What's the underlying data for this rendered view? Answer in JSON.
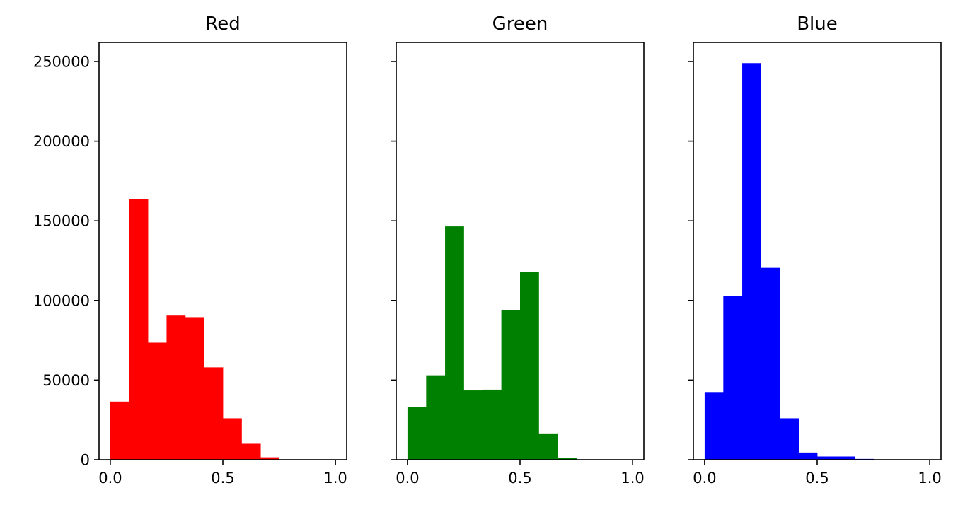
{
  "chart_data": [
    {
      "type": "bar",
      "title": "Red",
      "color": "#ff0000",
      "bin_edges": [
        0.0,
        0.083,
        0.167,
        0.25,
        0.333,
        0.417,
        0.5,
        0.583,
        0.667,
        0.75,
        0.833,
        0.917,
        1.0
      ],
      "values": [
        36500,
        163500,
        73500,
        90500,
        89500,
        58000,
        26000,
        10000,
        1500,
        0,
        0,
        0
      ],
      "xlim": [
        -0.05,
        1.05
      ],
      "ylim": [
        0,
        262000
      ],
      "xticks": [
        0.0,
        0.5,
        1.0
      ],
      "xtick_labels": [
        "0.0",
        "0.5",
        "1.0"
      ],
      "yticks": [
        0,
        50000,
        100000,
        150000,
        200000,
        250000
      ],
      "ytick_labels": [
        "0",
        "50000",
        "100000",
        "150000",
        "200000",
        "250000"
      ],
      "show_ytick_labels": true,
      "xlabel": "",
      "ylabel": "",
      "grid": false
    },
    {
      "type": "bar",
      "title": "Green",
      "color": "#008000",
      "bin_edges": [
        0.0,
        0.083,
        0.167,
        0.25,
        0.333,
        0.417,
        0.5,
        0.583,
        0.667,
        0.75,
        0.833,
        0.917,
        1.0
      ],
      "values": [
        33000,
        53000,
        146500,
        43500,
        44000,
        94000,
        118000,
        16500,
        1000,
        0,
        0,
        0
      ],
      "xlim": [
        -0.05,
        1.05
      ],
      "ylim": [
        0,
        262000
      ],
      "xticks": [
        0.0,
        0.5,
        1.0
      ],
      "xtick_labels": [
        "0.0",
        "0.5",
        "1.0"
      ],
      "yticks": [
        0,
        50000,
        100000,
        150000,
        200000,
        250000
      ],
      "ytick_labels": [
        "0",
        "50000",
        "100000",
        "150000",
        "200000",
        "250000"
      ],
      "show_ytick_labels": false,
      "xlabel": "",
      "ylabel": "",
      "grid": false
    },
    {
      "type": "bar",
      "title": "Blue",
      "color": "#0000ff",
      "bin_edges": [
        0.0,
        0.083,
        0.167,
        0.25,
        0.333,
        0.417,
        0.5,
        0.583,
        0.667,
        0.75,
        0.833,
        0.917,
        1.0
      ],
      "values": [
        42500,
        103000,
        249000,
        120500,
        26000,
        4500,
        2000,
        2000,
        500,
        0,
        0,
        0
      ],
      "xlim": [
        -0.05,
        1.05
      ],
      "ylim": [
        0,
        262000
      ],
      "xticks": [
        0.0,
        0.5,
        1.0
      ],
      "xtick_labels": [
        "0.0",
        "0.5",
        "1.0"
      ],
      "yticks": [
        0,
        50000,
        100000,
        150000,
        200000,
        250000
      ],
      "ytick_labels": [
        "0",
        "50000",
        "100000",
        "150000",
        "200000",
        "250000"
      ],
      "show_ytick_labels": false,
      "xlabel": "",
      "ylabel": "",
      "grid": false
    }
  ]
}
